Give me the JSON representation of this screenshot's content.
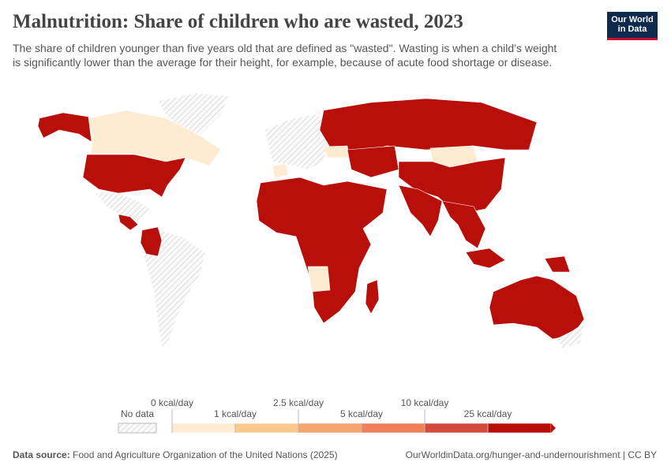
{
  "header": {
    "title": "Malnutrition: Share of children who are wasted, 2023",
    "subtitle_lines": [
      "The share of children younger than five years old that are defined as \"wasted\". Wasting is when a child’s weight",
      "is significantly lower than the average for their height, for example, because of acute food shortage or disease."
    ],
    "logo_lines": [
      "Our World",
      "in Data"
    ]
  },
  "legend": {
    "no_data": "No data",
    "labels": [
      "0 kcal/day",
      "1 kcal/day",
      "2.5 kcal/day",
      "5 kcal/day",
      "10 kcal/day",
      "25 kcal/day"
    ],
    "colors": [
      "#fdebd2",
      "#fbc98c",
      "#f4a66e",
      "#ee8157",
      "#d24b3c",
      "#b80f0a"
    ]
  },
  "footer": {
    "source_label": "Data source:",
    "source": "Food and Agriculture Organization of the United Nations (2025)",
    "link": "OurWorldinData.org/hunger-and-undernourishment | CC BY"
  }
}
